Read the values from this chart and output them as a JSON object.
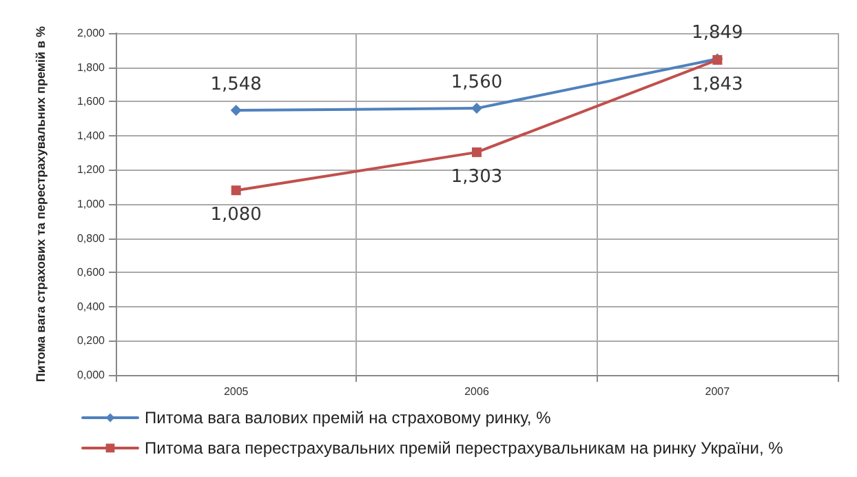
{
  "chart_data": {
    "type": "line",
    "ylabel": "Питома вага страхових та перестрахувальних премій в %",
    "categories": [
      "2005",
      "2006",
      "2007"
    ],
    "series": [
      {
        "name": "Питома вага валових премій на страховому ринку, %",
        "color": "#4f81bd",
        "marker": "diamond",
        "values": [
          1.548,
          1.56,
          1.849
        ],
        "value_labels": [
          "1,548",
          "1,560",
          "1,849"
        ]
      },
      {
        "name": "Питома вага перестрахувальних премій перестрахувальникам на ринку України, %",
        "color": "#c0504d",
        "marker": "square",
        "values": [
          1.08,
          1.303,
          1.843
        ],
        "value_labels": [
          "1,080",
          "1,303",
          "1,843"
        ]
      }
    ],
    "ylim": [
      0,
      2
    ],
    "yticks": [
      {
        "value": 0,
        "label": "0,000"
      },
      {
        "value": 0.2,
        "label": "0,200"
      },
      {
        "value": 0.4,
        "label": "0,400"
      },
      {
        "value": 0.6,
        "label": "0,600"
      },
      {
        "value": 0.8,
        "label": "0,800"
      },
      {
        "value": 1,
        "label": "1,000"
      },
      {
        "value": 1.2,
        "label": "1,200"
      },
      {
        "value": 1.4,
        "label": "1,400"
      },
      {
        "value": 1.6,
        "label": "1,600"
      },
      {
        "value": 1.8,
        "label": "1,800"
      },
      {
        "value": 2,
        "label": "2,000"
      }
    ],
    "grid": true,
    "legend": "bottom left",
    "line_style": "solid"
  }
}
